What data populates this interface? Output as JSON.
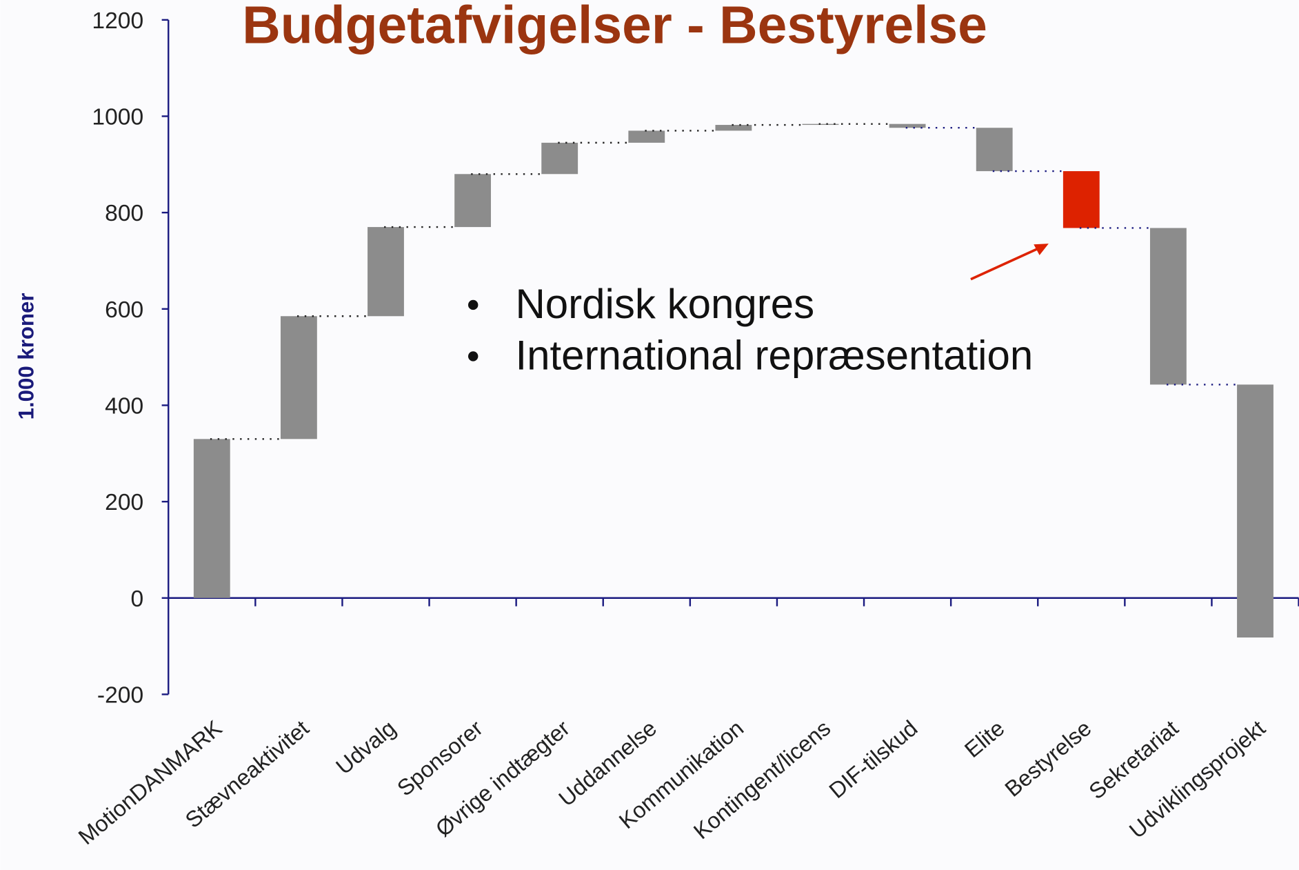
{
  "chart_data": {
    "type": "waterfall",
    "title": "Budgetafvigelser - Bestyrelse",
    "y_label": "1.000 kroner",
    "categories": [
      "MotionDANMARK",
      "Stævneaktivitet",
      "Udvalg",
      "Sponsorer",
      "Øvrige indtægter",
      "Uddannelse",
      "Kommunikation",
      "Kontingent/licens",
      "DIF-tilskud",
      "Elite",
      "Bestyrelse",
      "Sekretariat",
      "Udviklingsprojekt"
    ],
    "values": [
      330,
      255,
      185,
      110,
      65,
      25,
      12,
      2,
      -8,
      -90,
      -118,
      -325,
      -525
    ],
    "colors": [
      "#8c8c8c",
      "#8c8c8c",
      "#8c8c8c",
      "#8c8c8c",
      "#8c8c8c",
      "#8c8c8c",
      "#8c8c8c",
      "#8c8c8c",
      "#8c8c8c",
      "#8c8c8c",
      "#dd2200",
      "#8c8c8c",
      "#8c8c8c"
    ],
    "ylim": [
      -200,
      1200
    ],
    "yticks": [
      -200,
      0,
      200,
      400,
      600,
      800,
      1000,
      1200
    ],
    "annotations": [
      "Nordisk kongres",
      "International repræsentation"
    ]
  }
}
